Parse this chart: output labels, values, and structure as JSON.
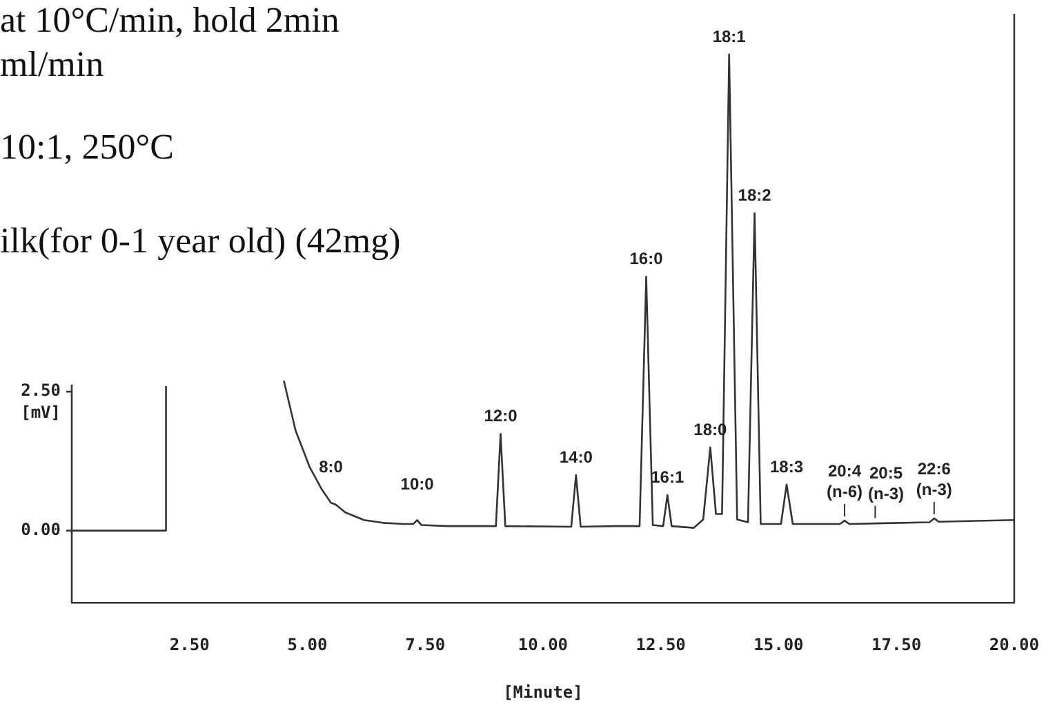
{
  "chart_data": {
    "type": "line",
    "annotations": [
      "at 10°C/min, hold 2min",
      "ml/min",
      "10:1, 250°C",
      "ilk(for 0-1 year old) (42mg)",
      {
        "text": "8:0",
        "x": 5.5,
        "y": 0.5
      },
      {
        "text": "10:0",
        "x": 7.33,
        "y": 0.19
      },
      {
        "text": "12:0",
        "x": 9.1,
        "y": 1.74
      },
      {
        "text": "14:0",
        "x": 10.7,
        "y": 1.0
      },
      {
        "text": "16:0",
        "x": 12.19,
        "y": 4.57
      },
      {
        "text": "16:1",
        "x": 12.64,
        "y": 0.64
      },
      {
        "text": "18:0",
        "x": 13.55,
        "y": 1.5
      },
      {
        "text": "18:1",
        "x": 13.95,
        "y": 8.57
      },
      {
        "text": "18:2",
        "x": 14.49,
        "y": 5.71
      },
      {
        "text": "18:3",
        "x": 15.17,
        "y": 0.83
      },
      {
        "text": "20:4 (n-6)",
        "x": 16.4,
        "y": 0.18
      },
      {
        "text": "20:5 (n-3)",
        "x": 17.05,
        "y": 0.15
      },
      {
        "text": "22:6 (n-3)",
        "x": 18.3,
        "y": 0.22
      }
    ],
    "xlabel": "[Minute]",
    "ylabel": "[mV]",
    "series": [
      {
        "color": "#333333",
        "x": [
          0,
          2.0,
          2.0,
          3.0,
          4.5,
          4.75,
          5.05,
          5.3,
          5.5,
          5.6,
          5.8,
          6.2,
          6.6,
          7.05,
          7.25,
          7.33,
          7.42,
          8.0,
          9.0,
          9.1,
          9.2,
          10.6,
          10.7,
          10.8,
          11.5,
          12.05,
          12.19,
          12.33,
          12.55,
          12.64,
          12.73,
          13.2,
          13.4,
          13.55,
          13.67,
          13.8,
          13.95,
          14.12,
          14.35,
          14.49,
          14.62,
          15.05,
          15.17,
          15.3,
          16.3,
          16.4,
          16.5,
          18.2,
          18.3,
          18.4,
          20.0
        ],
        "values": [
          0,
          0,
          2.6,
          null,
          2.7,
          1.8,
          1.14,
          0.75,
          0.5,
          0.47,
          0.33,
          0.19,
          0.14,
          0.12,
          0.12,
          0.19,
          0.1,
          0.08,
          0.08,
          1.74,
          0.08,
          0.07,
          1.0,
          0.07,
          0.08,
          0.08,
          4.57,
          0.1,
          0.08,
          0.64,
          0.08,
          0.05,
          0.2,
          1.5,
          0.3,
          0.3,
          8.57,
          0.2,
          0.15,
          5.71,
          0.12,
          0.12,
          0.83,
          0.12,
          0.12,
          0.18,
          0.12,
          0.15,
          0.22,
          0.16,
          0.19
        ]
      }
    ],
    "xlim": [
      0,
      20
    ],
    "xticks": [
      {
        "value": 2.5,
        "label": "2.50"
      },
      {
        "value": 5,
        "label": "5.00"
      },
      {
        "value": 7.5,
        "label": "7.50"
      },
      {
        "value": 10,
        "label": "10.00"
      },
      {
        "value": 12.5,
        "label": "12.50"
      },
      {
        "value": 15,
        "label": "15.00"
      },
      {
        "value": 17.5,
        "label": "17.50"
      },
      {
        "value": 20,
        "label": "20.00"
      }
    ],
    "ylim": [
      -1.3,
      9.3
    ],
    "yticks": [
      {
        "value": 0,
        "label": "0.00"
      },
      {
        "value": 2.5,
        "label": "2.50"
      }
    ],
    "grid": false,
    "legend": false,
    "marker": "none",
    "line_style": "solid"
  }
}
